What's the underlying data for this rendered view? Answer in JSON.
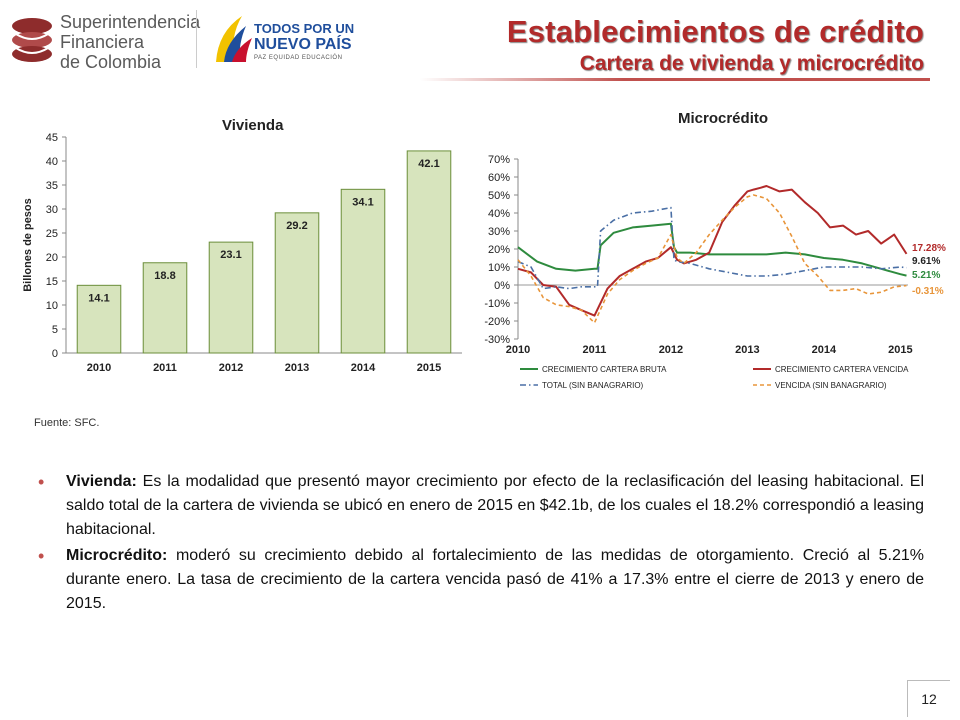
{
  "header": {
    "title": "Establecimientos de crédito",
    "subtitle": "Cartera de vivienda y microcrédito",
    "logo1_lines": [
      "Superintendencia",
      "Financiera",
      "de Colombia"
    ],
    "logo2_line1": "TODOS POR UN",
    "logo2_line2": "NUEVO PAÍS",
    "logo2_line3": "PAZ  EQUIDAD  EDUCACIÓN"
  },
  "chart_data": [
    {
      "type": "bar",
      "title": "Vivienda",
      "ylabel": "Billones de pesos",
      "xlabel": "",
      "categories": [
        "2010",
        "2011",
        "2012",
        "2013",
        "2014",
        "2015"
      ],
      "values": [
        14.1,
        18.8,
        23.1,
        29.2,
        34.1,
        42.1
      ],
      "data_labels": [
        "14.1",
        "18.8",
        "23.1",
        "29.2",
        "34.1",
        "42.1"
      ],
      "ylim": [
        0,
        45
      ],
      "yticks": [
        0,
        5,
        10,
        15,
        20,
        25,
        30,
        35,
        40,
        45
      ],
      "grid": false,
      "bar_color": "#d7e4bd",
      "bar_border": "#6b8e3a"
    },
    {
      "type": "line",
      "title": "Microcrédito",
      "xlabel": "",
      "ylabel": "",
      "x_ticks": [
        "2010",
        "2011",
        "2012",
        "2013",
        "2014",
        "2015"
      ],
      "yticks": [
        -0.3,
        -0.2,
        -0.1,
        0,
        0.1,
        0.2,
        0.3,
        0.4,
        0.5,
        0.6,
        0.7
      ],
      "ytick_labels": [
        "-30%",
        "-20%",
        "-10%",
        "0%",
        "10%",
        "20%",
        "30%",
        "40%",
        "50%",
        "60%",
        "70%"
      ],
      "ylim": [
        -0.3,
        0.7
      ],
      "xlim": [
        2010,
        2015.1
      ],
      "legend": "bottom",
      "series": [
        {
          "name": "CRECIMIENTO CARTERA BRUTA",
          "color": "#2e8b3e",
          "dash": "solid",
          "end_label": "5.21%",
          "x": [
            2010.0,
            2010.25,
            2010.5,
            2010.75,
            2011.0,
            2011.04,
            2011.08,
            2011.25,
            2011.5,
            2011.75,
            2012.0,
            2012.04,
            2012.08,
            2012.25,
            2012.5,
            2012.75,
            2013.0,
            2013.25,
            2013.5,
            2013.75,
            2014.0,
            2014.25,
            2014.5,
            2014.75,
            2015.0,
            2015.08
          ],
          "y": [
            0.21,
            0.13,
            0.09,
            0.08,
            0.09,
            0.09,
            0.22,
            0.29,
            0.32,
            0.33,
            0.34,
            0.21,
            0.18,
            0.18,
            0.17,
            0.17,
            0.17,
            0.17,
            0.18,
            0.17,
            0.15,
            0.14,
            0.12,
            0.09,
            0.06,
            0.0521
          ]
        },
        {
          "name": "CRECIMIENTO CARTERA VENCIDA",
          "color": "#b22a2a",
          "dash": "solid",
          "end_label": "17.28%",
          "x": [
            2010.0,
            2010.17,
            2010.33,
            2010.5,
            2010.67,
            2010.83,
            2011.0,
            2011.17,
            2011.33,
            2011.5,
            2011.67,
            2011.83,
            2012.0,
            2012.08,
            2012.17,
            2012.33,
            2012.5,
            2012.67,
            2012.83,
            2013.0,
            2013.08,
            2013.17,
            2013.25,
            2013.42,
            2013.58,
            2013.75,
            2013.92,
            2014.08,
            2014.25,
            2014.42,
            2014.58,
            2014.75,
            2014.92,
            2015.08
          ],
          "y": [
            0.09,
            0.07,
            0.0,
            -0.01,
            -0.11,
            -0.14,
            -0.17,
            -0.02,
            0.05,
            0.09,
            0.13,
            0.15,
            0.21,
            0.14,
            0.12,
            0.14,
            0.18,
            0.35,
            0.44,
            0.52,
            0.53,
            0.54,
            0.55,
            0.52,
            0.53,
            0.46,
            0.4,
            0.32,
            0.33,
            0.28,
            0.3,
            0.23,
            0.28,
            0.1728
          ]
        },
        {
          "name": "TOTAL (SIN BANAGRARIO)",
          "color": "#4a6fa5",
          "dash": "dashdot",
          "end_label": "9.61%",
          "x": [
            2010.0,
            2010.17,
            2010.33,
            2010.5,
            2010.67,
            2010.83,
            2011.0,
            2011.04,
            2011.08,
            2011.25,
            2011.5,
            2011.75,
            2012.0,
            2012.04,
            2012.08,
            2012.25,
            2012.5,
            2012.75,
            2013.0,
            2013.25,
            2013.5,
            2013.75,
            2014.0,
            2014.25,
            2014.5,
            2014.75,
            2015.0,
            2015.08
          ],
          "y": [
            0.13,
            0.1,
            -0.02,
            -0.01,
            -0.02,
            -0.01,
            -0.01,
            -0.01,
            0.3,
            0.36,
            0.4,
            0.41,
            0.43,
            0.14,
            0.13,
            0.12,
            0.09,
            0.07,
            0.05,
            0.05,
            0.06,
            0.08,
            0.1,
            0.1,
            0.1,
            0.09,
            0.1,
            0.0961
          ]
        },
        {
          "name": "VENCIDA (SIN BANAGRARIO)",
          "color": "#e8953a",
          "dash": "dashed",
          "end_label": "-0.31%",
          "x": [
            2010.0,
            2010.17,
            2010.33,
            2010.5,
            2010.67,
            2010.83,
            2011.0,
            2011.17,
            2011.33,
            2011.5,
            2011.67,
            2011.83,
            2012.0,
            2012.08,
            2012.17,
            2012.33,
            2012.5,
            2012.67,
            2012.83,
            2013.0,
            2013.08,
            2013.17,
            2013.25,
            2013.42,
            2013.58,
            2013.75,
            2013.92,
            2014.08,
            2014.25,
            2014.42,
            2014.58,
            2014.75,
            2014.92,
            2015.08
          ],
          "y": [
            0.14,
            0.05,
            -0.07,
            -0.11,
            -0.12,
            -0.14,
            -0.21,
            -0.05,
            0.03,
            0.08,
            0.12,
            0.15,
            0.28,
            0.15,
            0.12,
            0.18,
            0.28,
            0.36,
            0.43,
            0.49,
            0.5,
            0.49,
            0.48,
            0.4,
            0.27,
            0.12,
            0.05,
            -0.03,
            -0.03,
            -0.02,
            -0.05,
            -0.04,
            -0.01,
            -0.0031
          ]
        }
      ]
    }
  ],
  "source": "Fuente: SFC.",
  "bullets": [
    {
      "term": "Vivienda:",
      "text": " Es la modalidad que presentó mayor crecimiento por efecto de la reclasificación del leasing habitacional. El saldo total de la cartera de vivienda se ubicó en enero de 2015 en $42.1b, de los cuales el 18.2% correspondió a leasing habitacional."
    },
    {
      "term": "Microcrédito:",
      "text": " moderó su crecimiento debido al fortalecimiento de las medidas de otorgamiento. Creció al 5.21% durante enero. La tasa de crecimiento de la cartera vencida pasó de 41% a 17.3% entre el cierre de 2013 y enero de 2015."
    }
  ],
  "page_number": "12"
}
